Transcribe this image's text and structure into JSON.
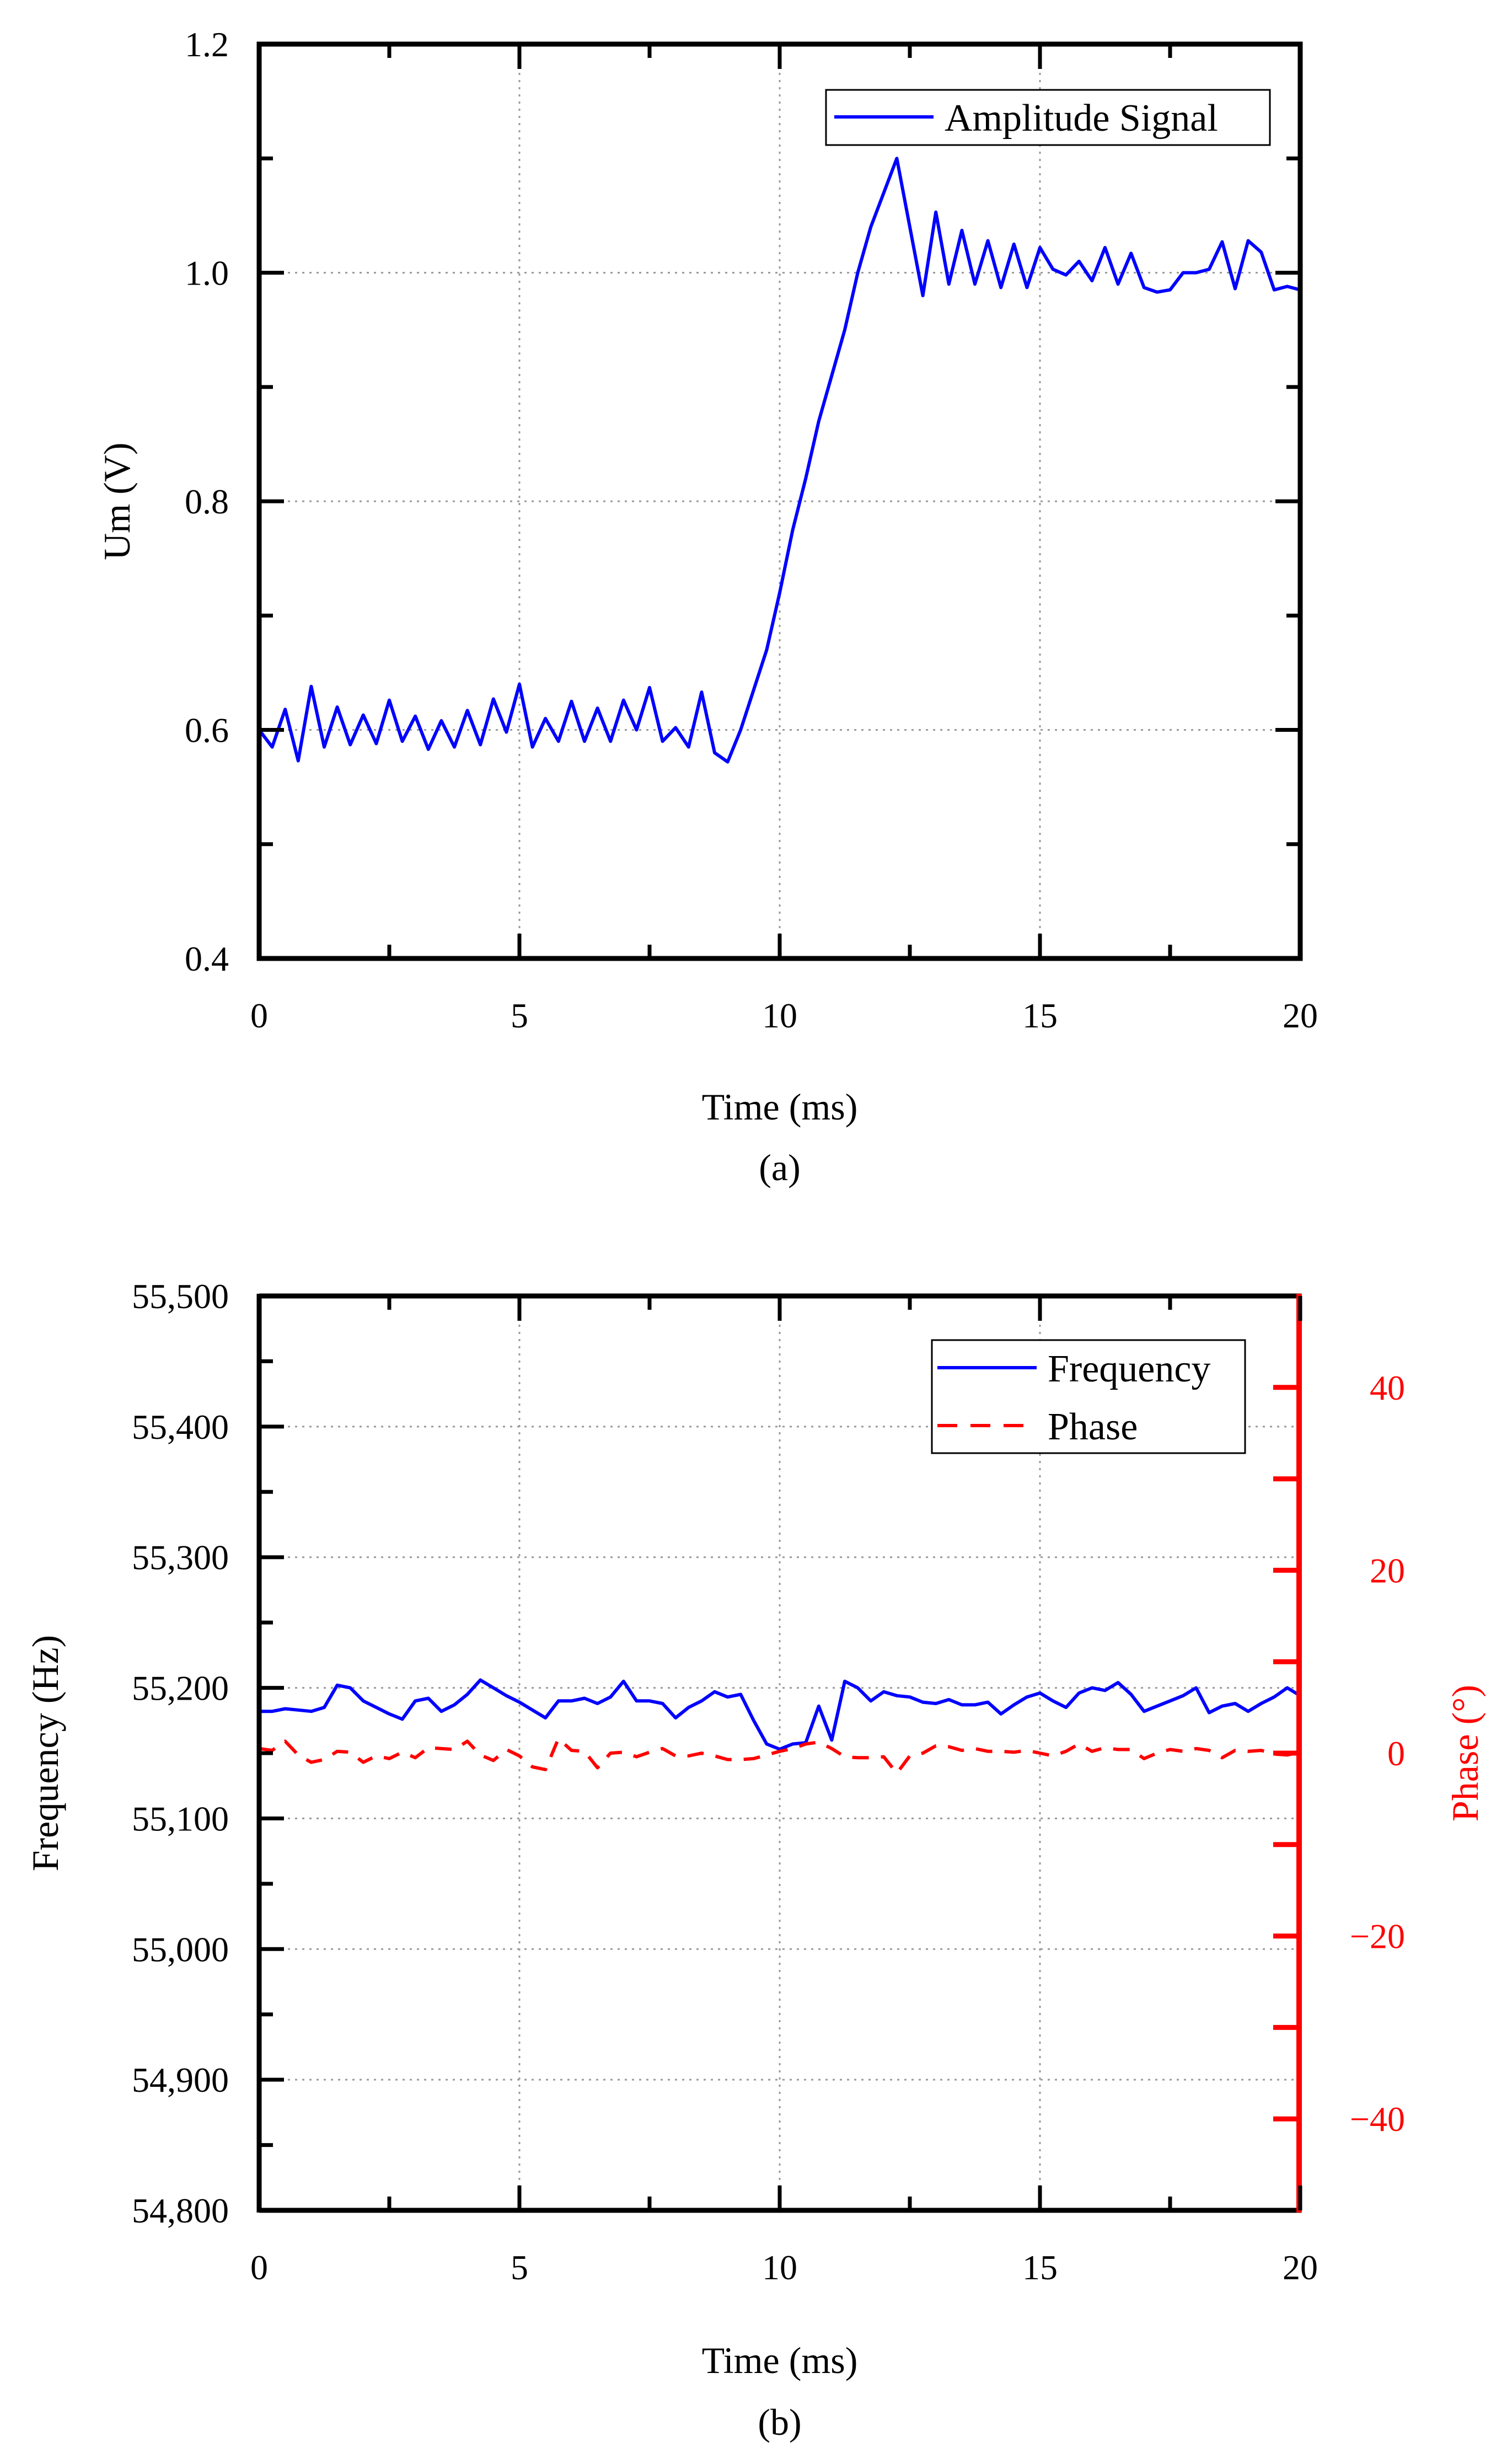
{
  "chart_data": [
    {
      "type": "line",
      "caption": "(a)",
      "xlabel": "Time (ms)",
      "ylabel": "Um (V)",
      "xlim": [
        0,
        20
      ],
      "ylim": [
        0.4,
        1.2
      ],
      "xticks": [
        0,
        5,
        10,
        15,
        20
      ],
      "xtick_labels": [
        "0",
        "5",
        "10",
        "15",
        "20"
      ],
      "yticks": [
        0.4,
        0.6,
        0.8,
        1.0,
        1.2
      ],
      "ytick_labels": [
        "0.4",
        "0.6",
        "0.8",
        "1.0",
        "1.2"
      ],
      "grid": true,
      "legend_position": "top-right",
      "series": [
        {
          "name": "Amplitude Signal",
          "color": "#0000ff",
          "style": "solid",
          "x": [
            0,
            0.25,
            0.5,
            0.75,
            1,
            1.25,
            1.5,
            1.75,
            2,
            2.25,
            2.5,
            2.75,
            3,
            3.25,
            3.5,
            3.75,
            4,
            4.25,
            4.5,
            4.75,
            5,
            5.25,
            5.5,
            5.75,
            6,
            6.25,
            6.5,
            6.75,
            7,
            7.25,
            7.5,
            7.75,
            8,
            8.25,
            8.5,
            8.75,
            9,
            9.25,
            9.5,
            9.75,
            10,
            10.25,
            10.5,
            10.75,
            11,
            11.25,
            11.5,
            11.75,
            12,
            12.25,
            12.5,
            12.75,
            13,
            13.25,
            13.5,
            13.75,
            14,
            14.25,
            14.5,
            14.75,
            15,
            15.25,
            15.5,
            15.75,
            16,
            16.25,
            16.5,
            16.75,
            17,
            17.25,
            17.5,
            17.75,
            18,
            18.25,
            18.5,
            18.75,
            19,
            19.25,
            19.5,
            19.75,
            20
          ],
          "values": [
            0.6,
            0.585,
            0.618,
            0.573,
            0.638,
            0.585,
            0.62,
            0.587,
            0.613,
            0.588,
            0.626,
            0.59,
            0.612,
            0.583,
            0.608,
            0.585,
            0.617,
            0.587,
            0.627,
            0.598,
            0.64,
            0.585,
            0.61,
            0.59,
            0.625,
            0.59,
            0.619,
            0.59,
            0.626,
            0.6,
            0.637,
            0.59,
            0.602,
            0.585,
            0.633,
            0.58,
            0.572,
            0.6,
            0.635,
            0.67,
            0.72,
            0.775,
            0.82,
            0.87,
            0.91,
            0.95,
            1.0,
            1.04,
            1.07,
            1.1,
            1.04,
            0.98,
            1.053,
            0.99,
            1.037,
            0.99,
            1.028,
            0.987,
            1.025,
            0.987,
            1.022,
            1.003,
            0.998,
            1.01,
            0.993,
            1.022,
            0.99,
            1.017,
            0.987,
            0.983,
            0.985,
            1.0,
            1.0,
            1.003,
            1.027,
            0.986,
            1.028,
            1.018,
            0.985,
            0.988,
            0.985
          ]
        }
      ]
    },
    {
      "type": "line",
      "caption": "(b)",
      "xlabel": "Time (ms)",
      "ylabel": "Frequency (Hz)",
      "ylabel2": "Phase (°)",
      "xlim": [
        0,
        20
      ],
      "ylim": [
        54800,
        55500
      ],
      "ylim2": [
        -50,
        50
      ],
      "xticks": [
        0,
        5,
        10,
        15,
        20
      ],
      "xtick_labels": [
        "0",
        "5",
        "10",
        "15",
        "20"
      ],
      "yticks": [
        54800,
        54900,
        55000,
        55100,
        55200,
        55300,
        55400,
        55500
      ],
      "ytick_labels": [
        "54,800",
        "54,900",
        "55,000",
        "55,100",
        "55,200",
        "55,300",
        "55,400",
        "55,500"
      ],
      "yticks2": [
        -40,
        -20,
        0,
        20,
        40
      ],
      "ytick2_labels": [
        "−40",
        "−20",
        "0",
        "20",
        "40"
      ],
      "grid": true,
      "legend_position": "top-right",
      "series": [
        {
          "name": "Frequency",
          "axis": "left",
          "color": "#0000ff",
          "style": "solid",
          "x": [
            0,
            0.25,
            0.5,
            0.75,
            1,
            1.25,
            1.5,
            1.75,
            2,
            2.25,
            2.5,
            2.75,
            3,
            3.25,
            3.5,
            3.75,
            4,
            4.25,
            4.5,
            4.75,
            5,
            5.25,
            5.5,
            5.75,
            6,
            6.25,
            6.5,
            6.75,
            7,
            7.25,
            7.5,
            7.75,
            8,
            8.25,
            8.5,
            8.75,
            9,
            9.25,
            9.5,
            9.75,
            10,
            10.25,
            10.5,
            10.75,
            11,
            11.25,
            11.5,
            11.75,
            12,
            12.25,
            12.5,
            12.75,
            13,
            13.25,
            13.5,
            13.75,
            14,
            14.25,
            14.5,
            14.75,
            15,
            15.25,
            15.5,
            15.75,
            16,
            16.25,
            16.5,
            16.75,
            17,
            17.25,
            17.5,
            17.75,
            18,
            18.25,
            18.5,
            18.75,
            19,
            19.25,
            19.5,
            19.75,
            20
          ],
          "values": [
            55182,
            55182,
            55184,
            55183,
            55182,
            55185,
            55202,
            55200,
            55190,
            55185,
            55180,
            55176,
            55190,
            55192,
            55182,
            55187,
            55195,
            55206,
            55200,
            55194,
            55189,
            55183,
            55177,
            55190,
            55190,
            55192,
            55188,
            55193,
            55205,
            55190,
            55190,
            55188,
            55177,
            55185,
            55190,
            55197,
            55193,
            55195,
            55175,
            55157,
            55153,
            55157,
            55158,
            55186,
            55160,
            55205,
            55200,
            55190,
            55197,
            55194,
            55193,
            55189,
            55188,
            55191,
            55187,
            55187,
            55189,
            55180,
            55187,
            55193,
            55196,
            55190,
            55185,
            55196,
            55200,
            55198,
            55204,
            55195,
            55182,
            55186,
            55190,
            55194,
            55200,
            55181,
            55186,
            55188,
            55182,
            55188,
            55193,
            55200,
            55194
          ]
        },
        {
          "name": "Phase",
          "axis": "right",
          "color": "#ff0000",
          "style": "dashed",
          "x": [
            0,
            0.25,
            0.5,
            0.75,
            1,
            1.25,
            1.5,
            1.75,
            2,
            2.25,
            2.5,
            2.75,
            3,
            3.25,
            3.5,
            3.75,
            4,
            4.25,
            4.5,
            4.75,
            5,
            5.25,
            5.5,
            5.75,
            6,
            6.25,
            6.5,
            6.75,
            7,
            7.25,
            7.5,
            7.75,
            8,
            8.25,
            8.5,
            8.75,
            9,
            9.25,
            9.5,
            9.75,
            10,
            10.25,
            10.5,
            10.75,
            11,
            11.25,
            11.5,
            11.75,
            12,
            12.25,
            12.5,
            12.75,
            13,
            13.25,
            13.5,
            13.75,
            14,
            14.25,
            14.5,
            14.75,
            15,
            15.25,
            15.5,
            15.75,
            16,
            16.25,
            16.5,
            16.75,
            17,
            17.25,
            17.5,
            17.75,
            18,
            18.25,
            18.5,
            18.75,
            19,
            19.25,
            19.5,
            19.75,
            20
          ],
          "values": [
            0.5,
            0.3,
            1.3,
            -0.2,
            -1.0,
            -0.7,
            0.2,
            0.1,
            -1.0,
            -0.3,
            -0.6,
            0.1,
            -0.5,
            0.6,
            0.5,
            0.4,
            1.3,
            -0.2,
            -0.8,
            0.4,
            -0.3,
            -1.5,
            -1.8,
            1.6,
            0.3,
            0.2,
            -1.6,
            0.0,
            0.1,
            -0.4,
            0.1,
            0.5,
            -0.3,
            -0.3,
            0.0,
            -0.3,
            -0.7,
            -0.7,
            -0.6,
            -0.2,
            0.2,
            0.5,
            1.0,
            1.2,
            0.5,
            -0.4,
            -0.5,
            -0.5,
            -0.4,
            -2.2,
            -0.3,
            0.0,
            0.8,
            0.7,
            0.3,
            0.5,
            0.2,
            0.2,
            0.1,
            0.3,
            0.0,
            -0.3,
            0.2,
            1.0,
            0.2,
            0.6,
            0.4,
            0.4,
            -0.6,
            0.0,
            0.4,
            0.2,
            0.5,
            0.3,
            -0.5,
            0.3,
            0.2,
            0.3,
            -0.1,
            -0.2,
            0.1
          ]
        }
      ]
    }
  ]
}
